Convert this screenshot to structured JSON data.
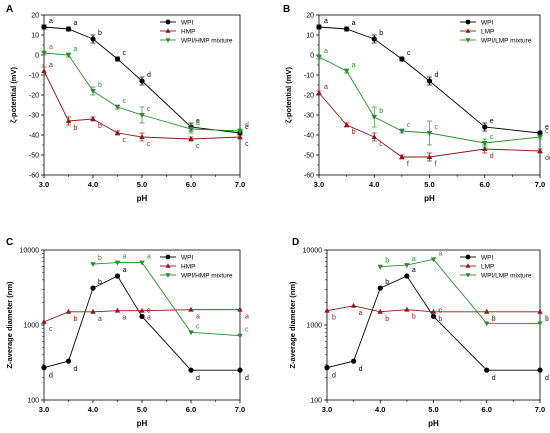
{
  "chart_data": [
    {
      "panel": "A",
      "type": "line",
      "xlabel": "pH",
      "ylabel": "ζ-potential (mV)",
      "xlim": [
        3.0,
        7.0
      ],
      "ylim": [
        -60,
        20
      ],
      "xticks": [
        "3.0",
        "4.0",
        "5.0",
        "6.0",
        "7.0"
      ],
      "yticks": [
        "-60",
        "-50",
        "-40",
        "-30",
        "-20",
        "-10",
        "0",
        "10",
        "20"
      ],
      "legend": "top-right",
      "series": [
        {
          "name": "WPI",
          "color": "#000000",
          "marker": "circle",
          "x": [
            3.0,
            3.5,
            4.0,
            4.5,
            5.0,
            6.0,
            7.0
          ],
          "y": [
            14,
            13,
            8,
            -2,
            -13,
            -36,
            -39
          ],
          "err": [
            1,
            1,
            2,
            1,
            2,
            2,
            1
          ],
          "labels": [
            "a",
            "a",
            "b",
            "c",
            "d",
            "e",
            "e"
          ]
        },
        {
          "name": "HMP",
          "color": "#8b1a1a",
          "marker": "triangle-up",
          "x": [
            3.0,
            3.5,
            4.0,
            4.5,
            5.0,
            6.0,
            7.0
          ],
          "y": [
            -8,
            -33,
            -32,
            -39,
            -41,
            -42,
            -41
          ],
          "err": [
            2,
            2,
            1,
            1,
            2,
            1,
            1
          ],
          "labels": [
            "a",
            "b",
            "b",
            "c",
            "c",
            "c",
            "c"
          ]
        },
        {
          "name": "WPI/HMP mixture",
          "color": "#2e8b2e",
          "marker": "triangle-down",
          "x": [
            3.0,
            3.5,
            4.0,
            4.5,
            5.0,
            6.0,
            7.0
          ],
          "y": [
            1,
            0,
            -18,
            -26,
            -30,
            -37,
            -38
          ],
          "err": [
            1,
            1,
            2,
            1,
            4,
            2,
            1
          ],
          "labels": [
            "a",
            "a",
            "b",
            "c",
            "c",
            "d",
            "d"
          ]
        }
      ]
    },
    {
      "panel": "B",
      "type": "line",
      "xlabel": "pH",
      "ylabel": "ζ-potential (mV)",
      "xlim": [
        3.0,
        7.0
      ],
      "ylim": [
        -60,
        20
      ],
      "xticks": [
        "3.0",
        "4.0",
        "5.0",
        "6.0",
        "7.0"
      ],
      "yticks": [
        "-60",
        "-50",
        "-40",
        "-30",
        "-20",
        "-10",
        "0",
        "10",
        "20"
      ],
      "legend": "top-right",
      "series": [
        {
          "name": "WPI",
          "color": "#000000",
          "marker": "circle",
          "x": [
            3.0,
            3.5,
            4.0,
            4.5,
            5.0,
            6.0,
            7.0
          ],
          "y": [
            14,
            13,
            8,
            -2,
            -13,
            -36,
            -39
          ],
          "err": [
            1,
            1,
            2,
            1,
            2,
            2,
            1
          ],
          "labels": [
            "a",
            "a",
            "b",
            "c",
            "d",
            "e",
            "e"
          ]
        },
        {
          "name": "LMP",
          "color": "#8b1a1a",
          "marker": "triangle-up",
          "x": [
            3.0,
            3.5,
            4.0,
            4.5,
            5.0,
            6.0,
            7.0
          ],
          "y": [
            -19,
            -35,
            -41,
            -51,
            -51,
            -47,
            -48
          ],
          "err": [
            1,
            1,
            2,
            1,
            2,
            2,
            1
          ],
          "labels": [
            "a",
            "b",
            "c",
            "f",
            "f",
            "d",
            "de"
          ]
        },
        {
          "name": "WPI/LMP mixture",
          "color": "#2e8b2e",
          "marker": "triangle-down",
          "x": [
            3.0,
            3.5,
            4.0,
            4.5,
            5.0,
            6.0,
            7.0
          ],
          "y": [
            -1,
            -8,
            -31,
            -38,
            -39,
            -44,
            -41
          ],
          "err": [
            1,
            1,
            5,
            1,
            6,
            2,
            1
          ],
          "labels": [
            "a",
            "a",
            "b",
            "c",
            "c",
            "c",
            "c"
          ]
        }
      ]
    },
    {
      "panel": "C",
      "type": "line",
      "xlabel": "pH",
      "ylabel": "Z-average diameter (nm)",
      "yscale": "log",
      "xlim": [
        3.0,
        7.0
      ],
      "ylim": [
        100,
        10000
      ],
      "xticks": [
        "3.0",
        "4.0",
        "5.0",
        "6.0",
        "7.0"
      ],
      "yticks": [
        "100",
        "1000",
        "10000"
      ],
      "legend": "top-right",
      "series": [
        {
          "name": "WPI",
          "color": "#000000",
          "marker": "circle",
          "x": [
            3.0,
            3.5,
            4.0,
            4.5,
            5.0,
            6.0,
            7.0
          ],
          "y": [
            270,
            330,
            3100,
            4500,
            1300,
            250,
            250
          ],
          "labels": [
            "d",
            "d",
            "b",
            "a",
            "c",
            "d",
            "d"
          ]
        },
        {
          "name": "HMP",
          "color": "#8b1a1a",
          "marker": "triangle-up",
          "x": [
            3.0,
            3.5,
            4.0,
            4.5,
            5.0,
            6.0,
            7.0
          ],
          "y": [
            1100,
            1500,
            1500,
            1550,
            1550,
            1600,
            1600
          ],
          "labels": [
            "c",
            "b",
            "a",
            "a",
            "a",
            "a",
            "a"
          ]
        },
        {
          "name": "WPI/HMP mixture",
          "color": "#2e8b2e",
          "marker": "triangle-down",
          "x": [
            4.0,
            4.5,
            5.0,
            6.0,
            7.0
          ],
          "y": [
            6500,
            6800,
            6800,
            800,
            720
          ],
          "labels": [
            "b",
            "a",
            "a",
            "c",
            "c"
          ]
        }
      ]
    },
    {
      "panel": "D",
      "type": "line",
      "xlabel": "pH",
      "ylabel": "Z-average diameter (nm)",
      "yscale": "log",
      "xlim": [
        3.0,
        7.0
      ],
      "ylim": [
        100,
        10000
      ],
      "xticks": [
        "3.0",
        "4.0",
        "5.0",
        "6.0",
        "7.0"
      ],
      "yticks": [
        "100",
        "1000",
        "10000"
      ],
      "legend": "top-right",
      "series": [
        {
          "name": "WPI",
          "color": "#000000",
          "marker": "circle",
          "x": [
            3.0,
            3.5,
            4.0,
            4.5,
            5.0,
            6.0,
            7.0
          ],
          "y": [
            270,
            330,
            3100,
            4500,
            1300,
            250,
            250
          ],
          "labels": [
            "d",
            "d",
            "b",
            "a",
            "c",
            "d",
            "d"
          ]
        },
        {
          "name": "LMP",
          "color": "#8b1a1a",
          "marker": "triangle-up",
          "x": [
            3.0,
            3.5,
            4.0,
            4.5,
            5.0,
            6.0,
            7.0
          ],
          "y": [
            1550,
            1800,
            1500,
            1600,
            1500,
            1500,
            1500
          ],
          "labels": [
            "b",
            "a",
            "b",
            "b",
            "b",
            "b",
            "b"
          ]
        },
        {
          "name": "WPI/LMP mixture",
          "color": "#2e8b2e",
          "marker": "triangle-down",
          "x": [
            4.0,
            4.5,
            5.0,
            6.0,
            7.0
          ],
          "y": [
            6000,
            6300,
            7500,
            1050,
            1050
          ],
          "labels": [
            "b",
            "a",
            "a",
            "c",
            "c"
          ]
        }
      ]
    }
  ]
}
